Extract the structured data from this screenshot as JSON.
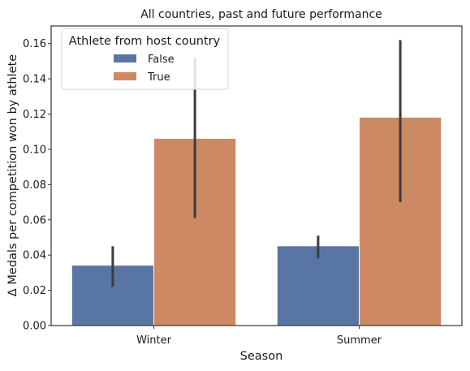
{
  "chart_data": {
    "type": "bar",
    "title": "All countries, past and future performance",
    "xlabel": "Season",
    "ylabel": "Δ Medals per competition won by athlete",
    "categories": [
      "Winter",
      "Summer"
    ],
    "series": [
      {
        "name": "False",
        "color": "#5975a4",
        "values": [
          0.034,
          0.045
        ],
        "ci_low": [
          0.022,
          0.038
        ],
        "ci_high": [
          0.045,
          0.051
        ]
      },
      {
        "name": "True",
        "color": "#cc8963",
        "values": [
          0.106,
          0.118
        ],
        "ci_low": [
          0.061,
          0.07
        ],
        "ci_high": [
          0.152,
          0.162
        ]
      }
    ],
    "ylim": [
      0.0,
      0.17
    ],
    "yticks": [
      "0.00",
      "0.02",
      "0.04",
      "0.06",
      "0.08",
      "0.10",
      "0.12",
      "0.14",
      "0.16"
    ],
    "grid": false,
    "legend": {
      "title": "Athlete from host country",
      "placement": "upper-left"
    }
  }
}
